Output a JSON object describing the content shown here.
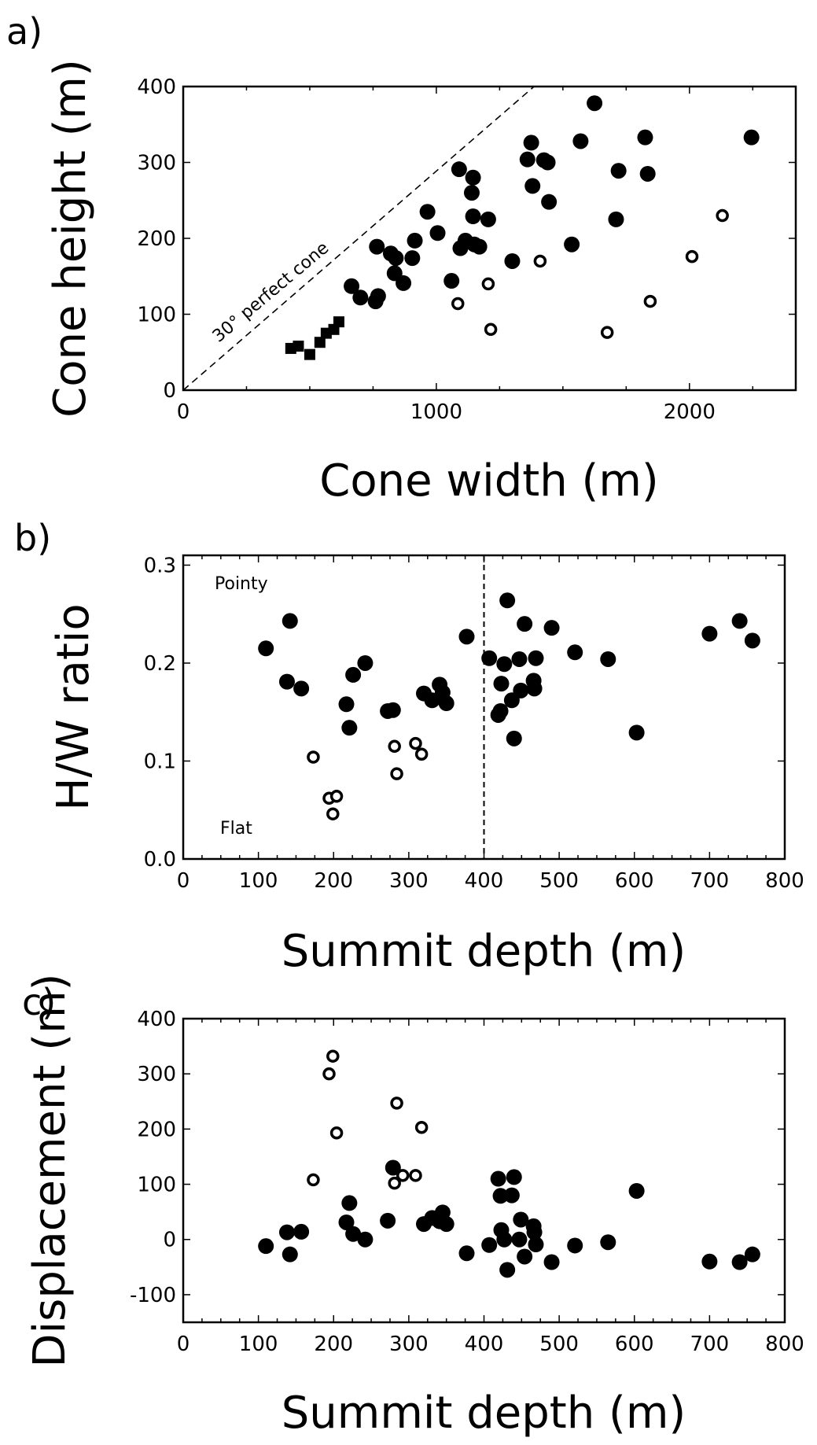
{
  "chart_data": [
    {
      "type": "scatter",
      "panel_label": "a)",
      "xlabel": "Cone width (m)",
      "ylabel": "Cone height (m)",
      "xlim": [
        0,
        2420
      ],
      "ylim": [
        0,
        400
      ],
      "xticks": [
        0,
        1000,
        2000
      ],
      "yticks": [
        0,
        100,
        200,
        300,
        400
      ],
      "grid": false,
      "annotations": [
        {
          "text": "30° perfect cone",
          "type": "reference-line",
          "from": [
            0,
            0
          ],
          "to": [
            1386,
            400
          ]
        }
      ],
      "series": [
        {
          "marker": "filled-square",
          "points": [
            [
              425,
              55
            ],
            [
              455,
              58
            ],
            [
              500,
              47
            ],
            [
              540,
              63
            ],
            [
              565,
              75
            ],
            [
              595,
              80
            ],
            [
              615,
              90
            ]
          ]
        },
        {
          "marker": "filled-circle",
          "points": [
            [
              665,
              137
            ],
            [
              700,
              122
            ],
            [
              760,
              117
            ],
            [
              765,
              189
            ],
            [
              770,
              124
            ],
            [
              820,
              180
            ],
            [
              835,
              154
            ],
            [
              840,
              174
            ],
            [
              870,
              141
            ],
            [
              905,
              174
            ],
            [
              915,
              197
            ],
            [
              965,
              235
            ],
            [
              1005,
              207
            ],
            [
              1060,
              144
            ],
            [
              1090,
              291
            ],
            [
              1095,
              187
            ],
            [
              1115,
              197
            ],
            [
              1140,
              260
            ],
            [
              1145,
              280
            ],
            [
              1145,
              229
            ],
            [
              1150,
              192
            ],
            [
              1170,
              189
            ],
            [
              1205,
              225
            ],
            [
              1300,
              170
            ],
            [
              1360,
              304
            ],
            [
              1375,
              326
            ],
            [
              1380,
              269
            ],
            [
              1425,
              303
            ],
            [
              1440,
              300
            ],
            [
              1445,
              248
            ],
            [
              1535,
              192
            ],
            [
              1570,
              328
            ],
            [
              1625,
              378
            ],
            [
              1710,
              225
            ],
            [
              1720,
              289
            ],
            [
              1825,
              333
            ],
            [
              1835,
              285
            ],
            [
              2245,
              333
            ]
          ]
        },
        {
          "marker": "open-circle",
          "points": [
            [
              1085,
              114
            ],
            [
              1205,
              140
            ],
            [
              1215,
              80
            ],
            [
              1410,
              170
            ],
            [
              1675,
              76
            ],
            [
              1845,
              117
            ],
            [
              2010,
              176
            ],
            [
              2130,
              230
            ]
          ]
        }
      ]
    },
    {
      "type": "scatter",
      "panel_label": "b)",
      "xlabel": "Summit depth (m)",
      "ylabel": "H/W ratio",
      "xlim": [
        0,
        800
      ],
      "ylim": [
        0.0,
        0.31
      ],
      "xticks": [
        0,
        100,
        200,
        300,
        400,
        500,
        600,
        700,
        800
      ],
      "yticks": [
        0.0,
        0.1,
        0.2,
        0.3
      ],
      "ytick_labels": [
        "0.0",
        "0.1",
        "0.2",
        "0.3"
      ],
      "grid": false,
      "annotations": [
        {
          "text": "Pointy",
          "anchor": [
            42,
            0.28
          ]
        },
        {
          "text": "Flat",
          "anchor": [
            48,
            0.03
          ]
        },
        {
          "type": "vertical-dashed-line",
          "x": 400
        }
      ],
      "series": [
        {
          "marker": "filled-circle",
          "points": [
            [
              110,
              0.215
            ],
            [
              138,
              0.181
            ],
            [
              142,
              0.243
            ],
            [
              157,
              0.174
            ],
            [
              217,
              0.158
            ],
            [
              221,
              0.134
            ],
            [
              226,
              0.188
            ],
            [
              242,
              0.2
            ],
            [
              272,
              0.151
            ],
            [
              279,
              0.152
            ],
            [
              320,
              0.169
            ],
            [
              331,
              0.162
            ],
            [
              341,
              0.178
            ],
            [
              345,
              0.17
            ],
            [
              350,
              0.159
            ],
            [
              377,
              0.227
            ],
            [
              407,
              0.205
            ],
            [
              419,
              0.147
            ],
            [
              422,
              0.151
            ],
            [
              423,
              0.179
            ],
            [
              427,
              0.199
            ],
            [
              431,
              0.264
            ],
            [
              437,
              0.162
            ],
            [
              440,
              0.123
            ],
            [
              447,
              0.204
            ],
            [
              449,
              0.172
            ],
            [
              454,
              0.24
            ],
            [
              466,
              0.182
            ],
            [
              467,
              0.174
            ],
            [
              469,
              0.205
            ],
            [
              490,
              0.236
            ],
            [
              521,
              0.211
            ],
            [
              565,
              0.204
            ],
            [
              603,
              0.129
            ],
            [
              700,
              0.23
            ],
            [
              740,
              0.243
            ],
            [
              757,
              0.223
            ]
          ]
        },
        {
          "marker": "open-circle",
          "points": [
            [
              173,
              0.104
            ],
            [
              194,
              0.062
            ],
            [
              199,
              0.046
            ],
            [
              204,
              0.064
            ],
            [
              281,
              0.115
            ],
            [
              284,
              0.087
            ],
            [
              309,
              0.118
            ],
            [
              317,
              0.107
            ]
          ]
        }
      ]
    },
    {
      "type": "scatter",
      "panel_label": "c)",
      "xlabel": "Summit depth (m)",
      "ylabel": "Displacement (m)",
      "xlim": [
        0,
        800
      ],
      "ylim": [
        -150,
        400
      ],
      "xticks": [
        0,
        100,
        200,
        300,
        400,
        500,
        600,
        700,
        800
      ],
      "yticks": [
        -100,
        0,
        100,
        200,
        300,
        400
      ],
      "grid": false,
      "series": [
        {
          "marker": "filled-circle",
          "points": [
            [
              110,
              -12
            ],
            [
              138,
              13
            ],
            [
              142,
              -27
            ],
            [
              157,
              14
            ],
            [
              217,
              31
            ],
            [
              221,
              66
            ],
            [
              226,
              10
            ],
            [
              242,
              0
            ],
            [
              272,
              34
            ],
            [
              279,
              130
            ],
            [
              320,
              28
            ],
            [
              331,
              39
            ],
            [
              341,
              33
            ],
            [
              345,
              49
            ],
            [
              350,
              28
            ],
            [
              377,
              -25
            ],
            [
              407,
              -10
            ],
            [
              419,
              110
            ],
            [
              422,
              79
            ],
            [
              423,
              17
            ],
            [
              427,
              0
            ],
            [
              431,
              -55
            ],
            [
              437,
              80
            ],
            [
              440,
              113
            ],
            [
              447,
              0
            ],
            [
              449,
              36
            ],
            [
              454,
              -31
            ],
            [
              466,
              24
            ],
            [
              467,
              13
            ],
            [
              469,
              -9
            ],
            [
              490,
              -41
            ],
            [
              521,
              -11
            ],
            [
              565,
              -5
            ],
            [
              603,
              88
            ],
            [
              700,
              -40
            ],
            [
              740,
              -41
            ],
            [
              757,
              -27
            ]
          ]
        },
        {
          "marker": "open-circle",
          "points": [
            [
              173,
              108
            ],
            [
              194,
              300
            ],
            [
              199,
              332
            ],
            [
              204,
              193
            ],
            [
              281,
              102
            ],
            [
              284,
              247
            ],
            [
              292,
              116
            ],
            [
              309,
              116
            ],
            [
              317,
              203
            ]
          ]
        }
      ]
    }
  ]
}
